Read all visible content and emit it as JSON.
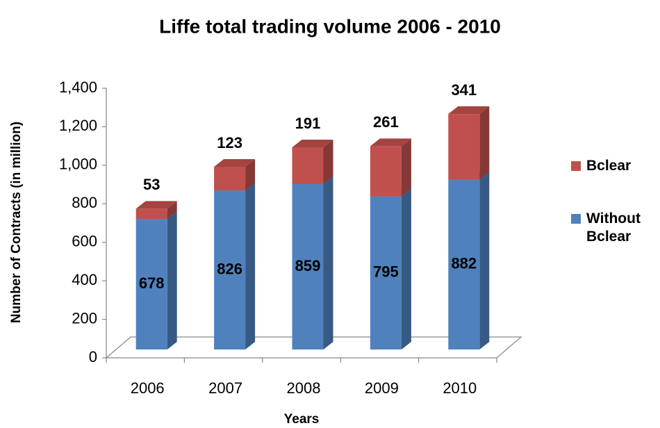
{
  "chart_data": {
    "type": "bar",
    "stacked": true,
    "title": "Liffe total trading volume 2006 - 2010",
    "y_label": "Number of Contracts (in million)",
    "x_label": "Years",
    "categories": [
      "2006",
      "2007",
      "2008",
      "2009",
      "2010"
    ],
    "series": [
      {
        "name": "Without Bclear",
        "color": "#4f81bd",
        "values": [
          678,
          826,
          859,
          795,
          882
        ]
      },
      {
        "name": "Bclear",
        "color": "#c0504d",
        "values": [
          53,
          123,
          191,
          261,
          341
        ]
      }
    ],
    "ylim": [
      0,
      1400
    ],
    "yticks": [
      0,
      200,
      400,
      600,
      800,
      {
        "value": 1000,
        "label": "1,000"
      },
      {
        "value": 1200,
        "label": "1,200"
      },
      {
        "value": 1400,
        "label": "1,400"
      }
    ],
    "legend": "right"
  }
}
